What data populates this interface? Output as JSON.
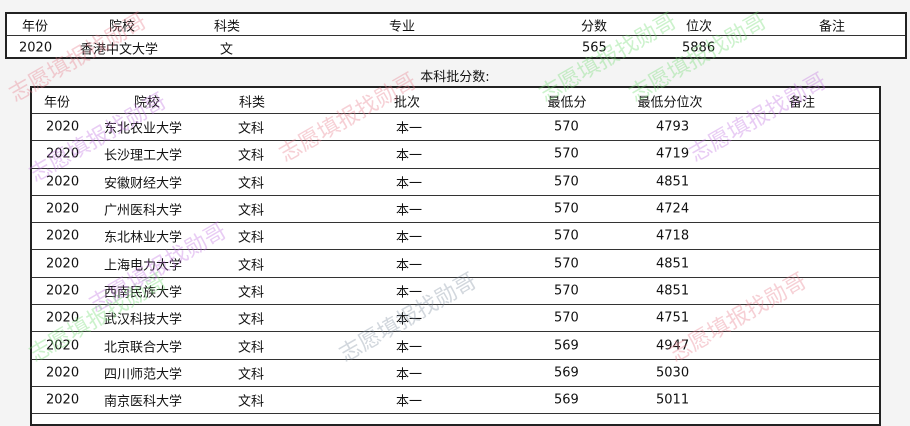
{
  "watermark": "志愿填报找勋哥",
  "table1": {
    "headers": [
      "年份",
      "院校",
      "科类",
      "专业",
      "分数",
      "位次",
      "备注"
    ],
    "rows": [
      [
        "2020",
        "香港中文大学",
        "文",
        "",
        "565",
        "5886",
        ""
      ]
    ]
  },
  "caption": "本科批分数:",
  "table2": {
    "headers": [
      "年份",
      "院校",
      "科类",
      "批次",
      "最低分",
      "最低分位次",
      "备注"
    ],
    "rows": [
      [
        "2020",
        "东北农业大学",
        "文科",
        "本一",
        "570",
        "4793",
        ""
      ],
      [
        "2020",
        "长沙理工大学",
        "文科",
        "本一",
        "570",
        "4719",
        ""
      ],
      [
        "2020",
        "安徽财经大学",
        "文科",
        "本一",
        "570",
        "4851",
        ""
      ],
      [
        "2020",
        "广州医科大学",
        "文科",
        "本一",
        "570",
        "4724",
        ""
      ],
      [
        "2020",
        "东北林业大学",
        "文科",
        "本一",
        "570",
        "4718",
        ""
      ],
      [
        "2020",
        "上海电力大学",
        "文科",
        "本一",
        "570",
        "4851",
        ""
      ],
      [
        "2020",
        "西南民族大学",
        "文科",
        "本一",
        "570",
        "4851",
        ""
      ],
      [
        "2020",
        "武汉科技大学",
        "文科",
        "本一",
        "570",
        "4751",
        ""
      ],
      [
        "2020",
        "北京联合大学",
        "文科",
        "本一",
        "569",
        "4947",
        ""
      ],
      [
        "2020",
        "四川师范大学",
        "文科",
        "本一",
        "569",
        "5030",
        ""
      ],
      [
        "2020",
        "南京医科大学",
        "文科",
        "本一",
        "569",
        "5011",
        ""
      ]
    ]
  },
  "colors": {
    "watermark_red": "#e87a8a",
    "watermark_green": "#6fdc6f",
    "watermark_purple": "#c070e0",
    "watermark_gray": "#8090a0"
  }
}
